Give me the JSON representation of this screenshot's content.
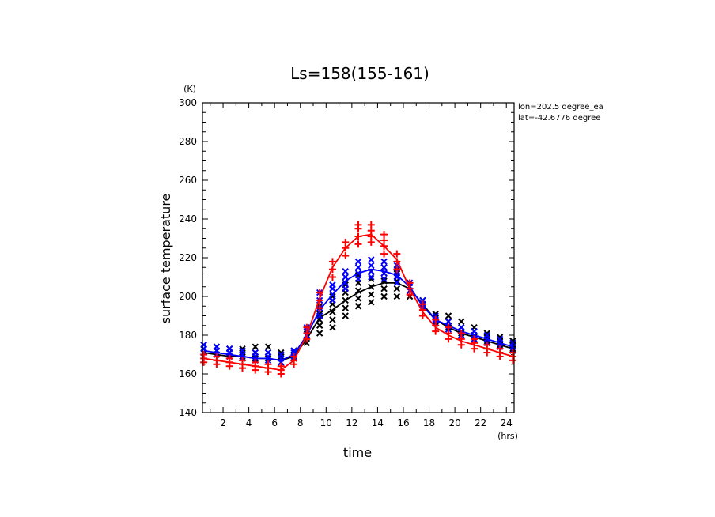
{
  "chart_data": {
    "type": "line",
    "title": "Ls=158(155-161)",
    "xlabel": "time",
    "ylabel": "surface temperature",
    "x_unit": "(hrs)",
    "y_unit": "(K)",
    "xlim": [
      0.4,
      24.6
    ],
    "ylim": [
      140,
      300
    ],
    "x_ticks": [
      2,
      4,
      6,
      8,
      10,
      12,
      14,
      16,
      18,
      20,
      22,
      24
    ],
    "y_ticks": [
      140,
      160,
      180,
      200,
      220,
      240,
      260,
      280,
      300
    ],
    "annotations": [
      "lon=202.5 degree_ea",
      "lat=-42.6776 degree"
    ],
    "grid": false,
    "x": [
      0.5,
      1.5,
      2.5,
      3.5,
      4.5,
      5.5,
      6.5,
      7.5,
      8.5,
      9.5,
      10.5,
      11.5,
      12.5,
      13.5,
      14.5,
      15.5,
      16.5,
      17.5,
      18.5,
      19.5,
      20.5,
      21.5,
      22.5,
      23.5,
      24.5
    ],
    "series": [
      {
        "color": "#000000",
        "marker": "x",
        "line": [
          171,
          170,
          169,
          169,
          168,
          168,
          167,
          169,
          178,
          189,
          193,
          198,
          202,
          205,
          207,
          207,
          204,
          196,
          188,
          184,
          181,
          179,
          177,
          175,
          173
        ],
        "scatter": [
          [
            171,
            173,
            175
          ],
          [
            170,
            172,
            174
          ],
          [
            169,
            171,
            173
          ],
          [
            169,
            171,
            173
          ],
          [
            168,
            171,
            174
          ],
          [
            168,
            171,
            174
          ],
          [
            166,
            169,
            171
          ],
          [
            168,
            170,
            172
          ],
          [
            176,
            180,
            183
          ],
          [
            181,
            185,
            188,
            191,
            195
          ],
          [
            184,
            188,
            192,
            196,
            200
          ],
          [
            190,
            194,
            198,
            202,
            206
          ],
          [
            195,
            199,
            203,
            207,
            211
          ],
          [
            197,
            201,
            205,
            209,
            213
          ],
          [
            200,
            204,
            208,
            212,
            215
          ],
          [
            200,
            204,
            208,
            212,
            214
          ],
          [
            200,
            203,
            207
          ],
          [
            194,
            196,
            198
          ],
          [
            187,
            189,
            191
          ],
          [
            184,
            187,
            190
          ],
          [
            181,
            184,
            187
          ],
          [
            179,
            182,
            184
          ],
          [
            177,
            179,
            181
          ],
          [
            175,
            177,
            179
          ],
          [
            173,
            175,
            177
          ]
        ]
      },
      {
        "color": "#0000ff",
        "marker": "x",
        "line": [
          172,
          171,
          170,
          169,
          168,
          168,
          167,
          170,
          180,
          193,
          201,
          208,
          212,
          214,
          213,
          211,
          205,
          195,
          188,
          185,
          182,
          180,
          178,
          176,
          174
        ],
        "scatter": [
          [
            171,
            173,
            175
          ],
          [
            170,
            172,
            174
          ],
          [
            169,
            171,
            173
          ],
          [
            168,
            170,
            172
          ],
          [
            167,
            169,
            171
          ],
          [
            167,
            169,
            171
          ],
          [
            166,
            168,
            170
          ],
          [
            169,
            171,
            172
          ],
          [
            180,
            182,
            184
          ],
          [
            190,
            194,
            198,
            202
          ],
          [
            198,
            201,
            204,
            206
          ],
          [
            204,
            207,
            210,
            213
          ],
          [
            209,
            212,
            215,
            218
          ],
          [
            210,
            213,
            216,
            219
          ],
          [
            209,
            212,
            215,
            218
          ],
          [
            207,
            210,
            213,
            216
          ],
          [
            203,
            205,
            207
          ],
          [
            194,
            196,
            198
          ],
          [
            186,
            188,
            190
          ],
          [
            183,
            185,
            187
          ],
          [
            180,
            182,
            184
          ],
          [
            178,
            180,
            182
          ],
          [
            176,
            178,
            180
          ],
          [
            174,
            176,
            178
          ],
          [
            172,
            174,
            176
          ]
        ]
      },
      {
        "color": "#ff0000",
        "marker": "+",
        "line": [
          168,
          167,
          166,
          165,
          164,
          163,
          162,
          167,
          180,
          199,
          215,
          225,
          231,
          232,
          226,
          219,
          204,
          192,
          184,
          180,
          177,
          175,
          173,
          171,
          169
        ],
        "scatter": [
          [
            166,
            168,
            170
          ],
          [
            165,
            167,
            169
          ],
          [
            164,
            166,
            168
          ],
          [
            163,
            165,
            167
          ],
          [
            162,
            164,
            166
          ],
          [
            161,
            163,
            165
          ],
          [
            160,
            162,
            164
          ],
          [
            165,
            167,
            169
          ],
          [
            178,
            181,
            184
          ],
          [
            194,
            198,
            202
          ],
          [
            210,
            214,
            218
          ],
          [
            221,
            225,
            228
          ],
          [
            227,
            231,
            235,
            237
          ],
          [
            228,
            231,
            234,
            237
          ],
          [
            222,
            226,
            229,
            232
          ],
          [
            214,
            218,
            222
          ],
          [
            201,
            204,
            207
          ],
          [
            190,
            193,
            196
          ],
          [
            182,
            185,
            188
          ],
          [
            178,
            181,
            184
          ],
          [
            175,
            178,
            181
          ],
          [
            173,
            176,
            178
          ],
          [
            171,
            173,
            175
          ],
          [
            169,
            171,
            173
          ],
          [
            167,
            169,
            171
          ]
        ]
      }
    ]
  }
}
